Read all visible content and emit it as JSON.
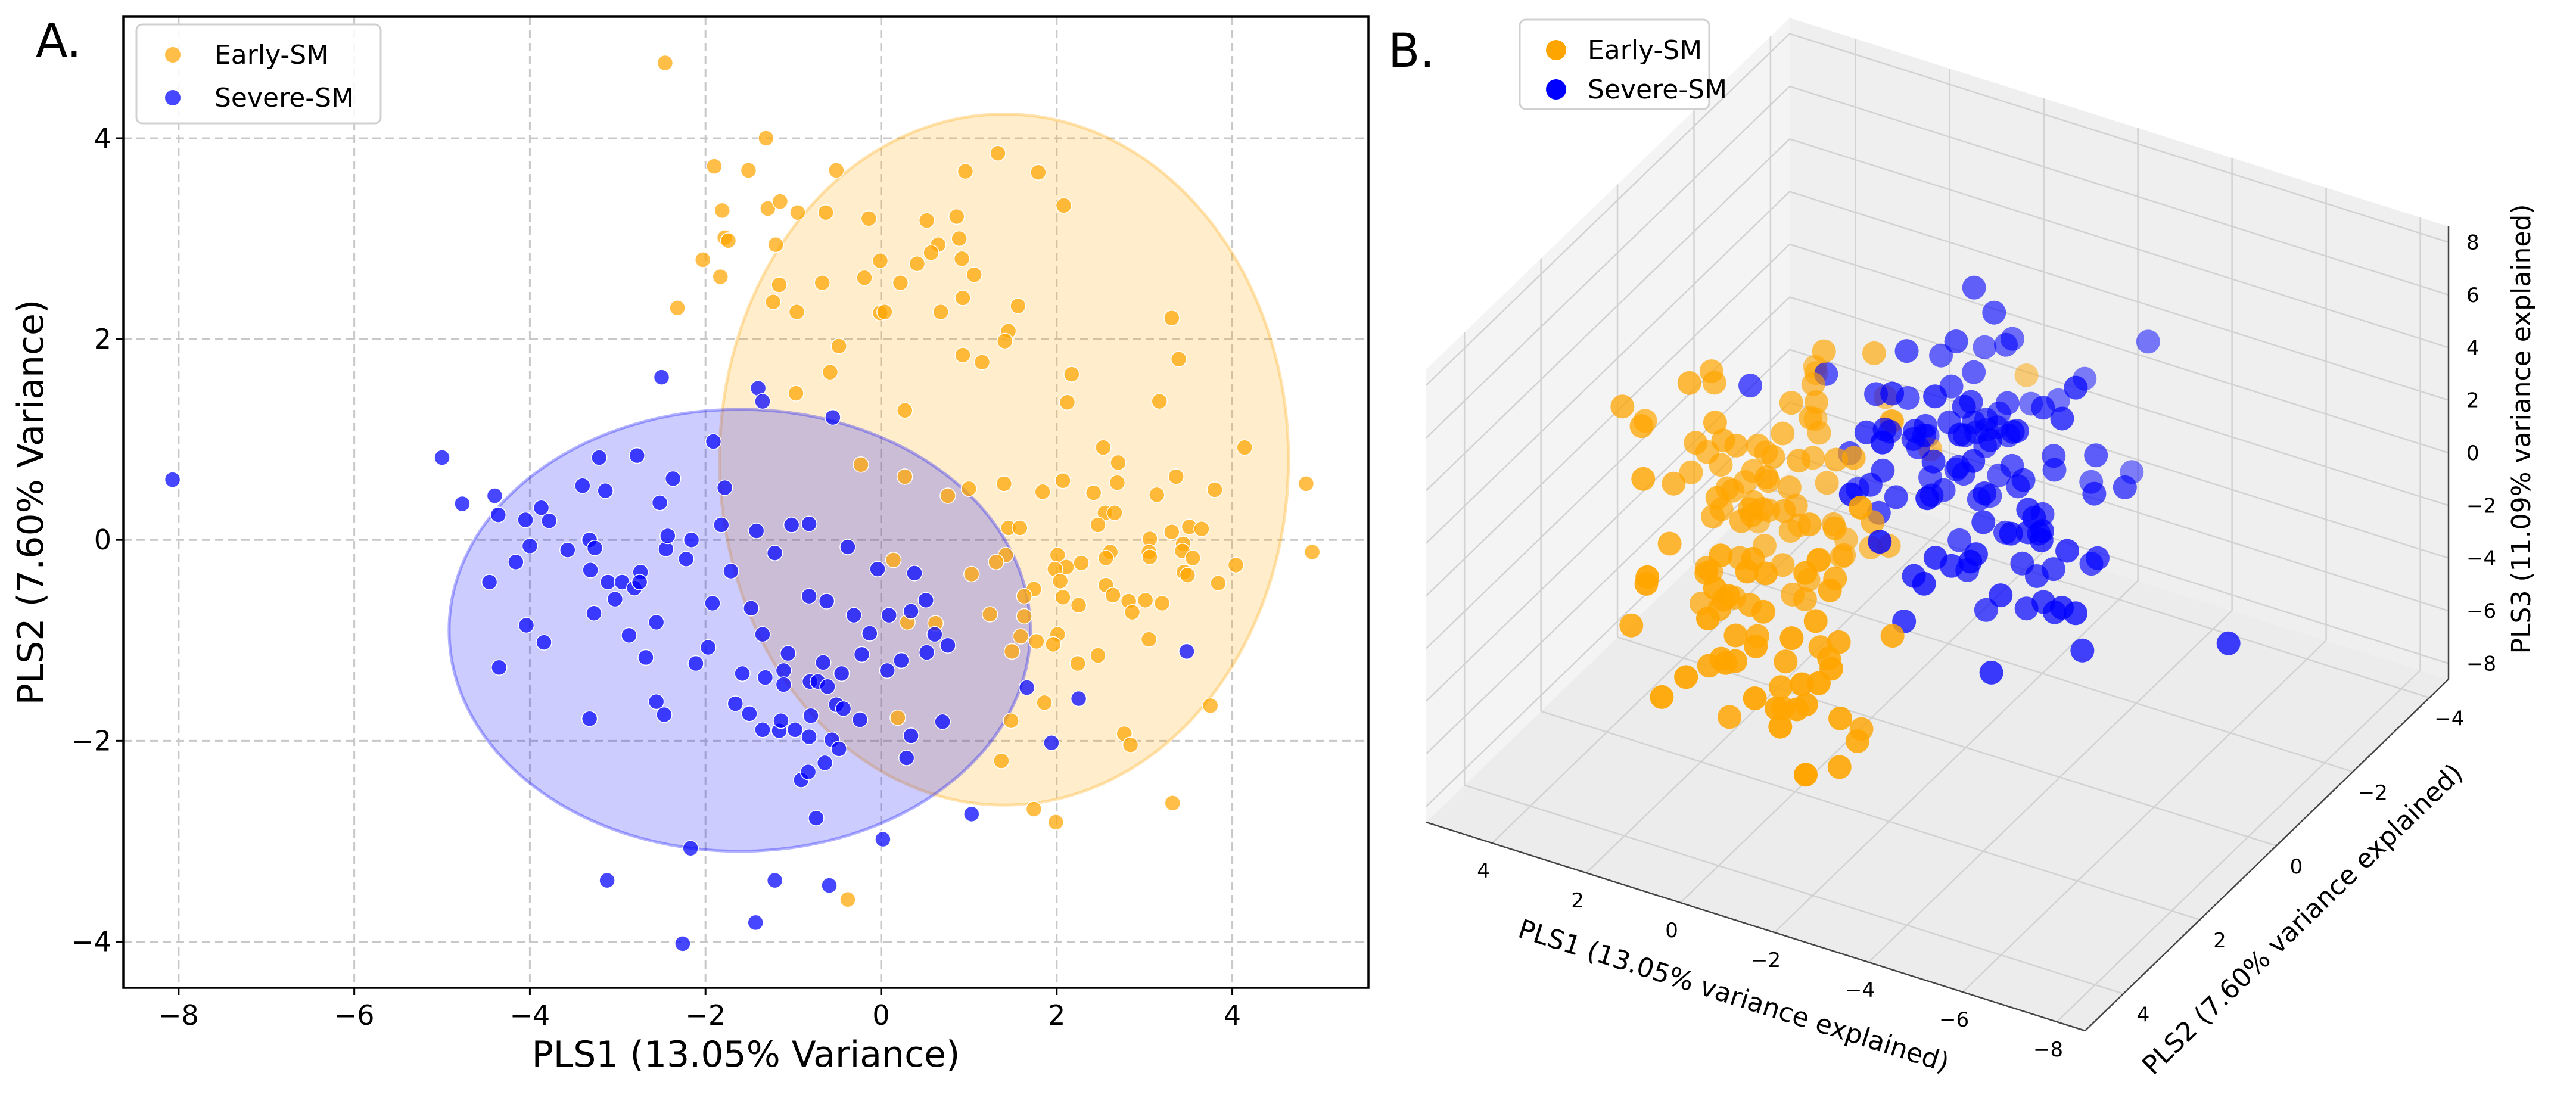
{
  "colors": {
    "early": "#FFA500",
    "severe": "#0000FF"
  },
  "chart_data": [
    {
      "panel_label": "A.",
      "type": "scatter",
      "xlabel": "PLS1 (13.05% Variance)",
      "ylabel": "PLS2 (7.60% Variance)",
      "xlim": [
        -8.63,
        5.55
      ],
      "ylim": [
        -4.46,
        5.21
      ],
      "xticks": [
        -8,
        -6,
        -4,
        -2,
        0,
        2,
        4
      ],
      "yticks": [
        -4,
        -2,
        0,
        2,
        4
      ],
      "grid": true,
      "legend_position": "top-left",
      "legend": [
        "Early-SM",
        "Severe-SM"
      ],
      "ellipses": [
        {
          "series": "Early-SM",
          "center": [
            1.4,
            0.8
          ],
          "radii": [
            3.24,
            3.44
          ]
        },
        {
          "series": "Severe-SM",
          "center": [
            -1.61,
            -0.9
          ],
          "radii": [
            3.31,
            2.2
          ]
        }
      ],
      "series": [
        {
          "name": "Early-SM",
          "points": [
            [
              -2.46,
              4.75
            ],
            [
              -1.31,
              4.0
            ],
            [
              -1.9,
              3.72
            ],
            [
              -1.51,
              3.68
            ],
            [
              -0.51,
              3.68
            ],
            [
              1.33,
              3.85
            ],
            [
              0.96,
              3.67
            ],
            [
              1.79,
              3.66
            ],
            [
              -1.81,
              3.28
            ],
            [
              -1.29,
              3.3
            ],
            [
              -1.15,
              3.37
            ],
            [
              -0.95,
              3.26
            ],
            [
              -0.63,
              3.26
            ],
            [
              -0.14,
              3.2
            ],
            [
              0.52,
              3.18
            ],
            [
              0.86,
              3.22
            ],
            [
              2.08,
              3.33
            ],
            [
              -1.78,
              3.01
            ],
            [
              -1.74,
              2.98
            ],
            [
              -1.2,
              2.94
            ],
            [
              0.65,
              2.94
            ],
            [
              0.89,
              3.0
            ],
            [
              0.57,
              2.86
            ],
            [
              0.92,
              2.8
            ],
            [
              0.41,
              2.75
            ],
            [
              -2.03,
              2.79
            ],
            [
              -0.01,
              2.78
            ],
            [
              -1.83,
              2.62
            ],
            [
              -1.16,
              2.54
            ],
            [
              -0.67,
              2.56
            ],
            [
              -0.19,
              2.61
            ],
            [
              0.22,
              2.56
            ],
            [
              1.06,
              2.64
            ],
            [
              -1.23,
              2.37
            ],
            [
              0.93,
              2.41
            ],
            [
              -2.32,
              2.31
            ],
            [
              -0.96,
              2.27
            ],
            [
              -0.01,
              2.26
            ],
            [
              0.04,
              2.27
            ],
            [
              0.68,
              2.27
            ],
            [
              1.56,
              2.33
            ],
            [
              3.31,
              2.21
            ],
            [
              1.45,
              2.08
            ],
            [
              1.41,
              1.98
            ],
            [
              -0.48,
              1.93
            ],
            [
              0.93,
              1.84
            ],
            [
              1.15,
              1.77
            ],
            [
              3.39,
              1.8
            ],
            [
              -0.58,
              1.67
            ],
            [
              2.17,
              1.65
            ],
            [
              -0.97,
              1.46
            ],
            [
              2.12,
              1.37
            ],
            [
              3.17,
              1.38
            ],
            [
              0.27,
              1.29
            ],
            [
              2.53,
              0.92
            ],
            [
              4.14,
              0.92
            ],
            [
              -0.23,
              0.75
            ],
            [
              0.27,
              0.63
            ],
            [
              2.7,
              0.77
            ],
            [
              3.36,
              0.63
            ],
            [
              2.07,
              0.59
            ],
            [
              1.4,
              0.56
            ],
            [
              2.69,
              0.57
            ],
            [
              4.84,
              0.56
            ],
            [
              1.0,
              0.51
            ],
            [
              1.84,
              0.48
            ],
            [
              2.42,
              0.47
            ],
            [
              3.14,
              0.45
            ],
            [
              3.8,
              0.5
            ],
            [
              0.76,
              0.44
            ],
            [
              2.55,
              0.27
            ],
            [
              2.66,
              0.27
            ],
            [
              2.47,
              0.15
            ],
            [
              1.45,
              0.12
            ],
            [
              1.58,
              0.12
            ],
            [
              3.31,
              0.08
            ],
            [
              3.51,
              0.13
            ],
            [
              3.65,
              0.11
            ],
            [
              3.06,
              0.01
            ],
            [
              3.44,
              -0.04
            ],
            [
              4.91,
              -0.12
            ],
            [
              2.01,
              -0.15
            ],
            [
              2.61,
              -0.12
            ],
            [
              3.05,
              -0.12
            ],
            [
              3.43,
              -0.11
            ],
            [
              1.42,
              -0.15
            ],
            [
              3.06,
              -0.17
            ],
            [
              3.55,
              -0.18
            ],
            [
              1.31,
              -0.22
            ],
            [
              2.28,
              -0.23
            ],
            [
              2.56,
              -0.18
            ],
            [
              0.14,
              -0.2
            ],
            [
              2.11,
              -0.27
            ],
            [
              1.98,
              -0.29
            ],
            [
              4.04,
              -0.25
            ],
            [
              1.03,
              -0.34
            ],
            [
              3.45,
              -0.32
            ],
            [
              3.49,
              -0.35
            ],
            [
              2.04,
              -0.41
            ],
            [
              2.56,
              -0.45
            ],
            [
              3.84,
              -0.43
            ],
            [
              1.74,
              -0.49
            ],
            [
              1.63,
              -0.56
            ],
            [
              2.07,
              -0.57
            ],
            [
              2.64,
              -0.55
            ],
            [
              2.82,
              -0.61
            ],
            [
              3.01,
              -0.6
            ],
            [
              3.2,
              -0.63
            ],
            [
              2.25,
              -0.65
            ],
            [
              2.86,
              -0.72
            ],
            [
              1.24,
              -0.74
            ],
            [
              1.63,
              -0.76
            ],
            [
              0.3,
              -0.82
            ],
            [
              0.62,
              -0.83
            ],
            [
              2.01,
              -0.94
            ],
            [
              1.59,
              -0.96
            ],
            [
              1.77,
              -1.01
            ],
            [
              1.96,
              -1.04
            ],
            [
              3.05,
              -0.99
            ],
            [
              1.49,
              -1.11
            ],
            [
              2.47,
              -1.15
            ],
            [
              2.24,
              -1.23
            ],
            [
              3.75,
              -1.65
            ],
            [
              1.86,
              -1.62
            ],
            [
              1.48,
              -1.8
            ],
            [
              0.19,
              -1.77
            ],
            [
              2.77,
              -1.93
            ],
            [
              2.84,
              -2.04
            ],
            [
              1.37,
              -2.2
            ],
            [
              1.74,
              -2.68
            ],
            [
              1.99,
              -2.81
            ],
            [
              3.32,
              -2.62
            ],
            [
              -0.38,
              -3.58
            ]
          ]
        },
        {
          "name": "Severe-SM",
          "points": [
            [
              -8.07,
              0.6
            ],
            [
              -5.0,
              0.82
            ],
            [
              -4.77,
              0.36
            ],
            [
              -4.4,
              0.44
            ],
            [
              -4.36,
              0.25
            ],
            [
              -4.46,
              -0.42
            ],
            [
              -4.35,
              -1.27
            ],
            [
              -4.16,
              -0.22
            ],
            [
              -4.05,
              0.2
            ],
            [
              -4.0,
              -0.06
            ],
            [
              -4.04,
              -0.85
            ],
            [
              -3.87,
              0.32
            ],
            [
              -3.78,
              0.19
            ],
            [
              -3.84,
              -1.02
            ],
            [
              -3.57,
              -0.1
            ],
            [
              -3.4,
              0.54
            ],
            [
              -3.32,
              0.0
            ],
            [
              -3.26,
              -0.08
            ],
            [
              -3.31,
              -0.3
            ],
            [
              -3.27,
              -0.73
            ],
            [
              -3.32,
              -1.78
            ],
            [
              -3.21,
              0.82
            ],
            [
              -3.14,
              0.49
            ],
            [
              -3.11,
              -0.42
            ],
            [
              -3.03,
              -0.59
            ],
            [
              -2.95,
              -0.42
            ],
            [
              -3.12,
              -3.39
            ],
            [
              -2.87,
              -0.95
            ],
            [
              -2.78,
              0.84
            ],
            [
              -2.81,
              -0.48
            ],
            [
              -2.74,
              -0.32
            ],
            [
              -2.75,
              -0.42
            ],
            [
              -2.68,
              -1.17
            ],
            [
              -2.56,
              -0.82
            ],
            [
              -2.56,
              -1.61
            ],
            [
              -2.52,
              0.37
            ],
            [
              -2.5,
              1.62
            ],
            [
              -2.47,
              -1.74
            ],
            [
              -2.45,
              -0.09
            ],
            [
              -2.43,
              0.04
            ],
            [
              -2.37,
              0.61
            ],
            [
              -2.22,
              -0.19
            ],
            [
              -2.16,
              0.0
            ],
            [
              -2.11,
              -1.23
            ],
            [
              -2.17,
              -3.07
            ],
            [
              -2.26,
              -4.02
            ],
            [
              -1.97,
              -1.07
            ],
            [
              -1.91,
              0.98
            ],
            [
              -1.92,
              -0.63
            ],
            [
              -1.82,
              0.15
            ],
            [
              -1.78,
              0.52
            ],
            [
              -1.71,
              -0.31
            ],
            [
              -1.66,
              -1.63
            ],
            [
              -1.58,
              -1.33
            ],
            [
              -1.48,
              -0.68
            ],
            [
              -1.5,
              -1.73
            ],
            [
              -1.42,
              0.09
            ],
            [
              -1.4,
              1.51
            ],
            [
              -1.35,
              1.38
            ],
            [
              -1.35,
              -0.94
            ],
            [
              -1.35,
              -1.89
            ],
            [
              -1.32,
              -1.37
            ],
            [
              -1.43,
              -3.81
            ],
            [
              -1.21,
              -0.13
            ],
            [
              -1.21,
              -3.39
            ],
            [
              -1.16,
              -1.9
            ],
            [
              -1.14,
              -1.8
            ],
            [
              -1.11,
              -1.3
            ],
            [
              -1.11,
              -1.44
            ],
            [
              -1.06,
              -1.13
            ],
            [
              -1.02,
              0.15
            ],
            [
              -0.98,
              -1.89
            ],
            [
              -0.91,
              -2.39
            ],
            [
              -0.83,
              -2.31
            ],
            [
              -0.82,
              0.16
            ],
            [
              -0.82,
              -0.56
            ],
            [
              -0.81,
              -1.41
            ],
            [
              -0.8,
              -1.75
            ],
            [
              -0.82,
              -1.96
            ],
            [
              -0.74,
              -2.77
            ],
            [
              -0.72,
              -1.41
            ],
            [
              -0.66,
              -1.22
            ],
            [
              -0.64,
              -2.22
            ],
            [
              -0.62,
              -0.61
            ],
            [
              -0.61,
              -1.46
            ],
            [
              -0.59,
              -3.44
            ],
            [
              -0.56,
              -1.99
            ],
            [
              -0.55,
              1.22
            ],
            [
              -0.51,
              -1.64
            ],
            [
              -0.48,
              -2.08
            ],
            [
              -0.45,
              -1.33
            ],
            [
              -0.43,
              -1.68
            ],
            [
              -0.38,
              -0.07
            ],
            [
              -0.31,
              -0.75
            ],
            [
              -0.24,
              -1.79
            ],
            [
              -0.22,
              -1.14
            ],
            [
              -0.13,
              -0.93
            ],
            [
              -0.04,
              -0.29
            ],
            [
              0.02,
              -2.98
            ],
            [
              0.07,
              -1.3
            ],
            [
              0.09,
              -0.75
            ],
            [
              0.23,
              -1.2
            ],
            [
              0.29,
              -2.17
            ],
            [
              0.34,
              -0.71
            ],
            [
              0.34,
              -1.95
            ],
            [
              0.38,
              -0.33
            ],
            [
              0.51,
              -0.6
            ],
            [
              0.52,
              -1.12
            ],
            [
              0.61,
              -0.94
            ],
            [
              0.7,
              -1.81
            ],
            [
              0.76,
              -1.05
            ],
            [
              1.03,
              -2.73
            ],
            [
              1.66,
              -1.47
            ],
            [
              1.94,
              -2.02
            ],
            [
              2.25,
              -1.58
            ],
            [
              3.48,
              -1.11
            ]
          ]
        }
      ]
    },
    {
      "panel_label": "B.",
      "type": "scatter3d",
      "xlabel": "PLS1 (13.05% variance explained)",
      "ylabel": "PLS2 (7.60% variance explained)",
      "zlabel": "PLS3 (11.09% variance explained)",
      "xticks": [
        4,
        2,
        0,
        -2,
        -4,
        -6,
        -8
      ],
      "yticks": [
        -4,
        -2,
        0,
        2,
        4
      ],
      "zticks": [
        8,
        6,
        4,
        2,
        0,
        -2,
        -4,
        -6,
        -8
      ],
      "xlim": [
        -8.6,
        5.4
      ],
      "ylim": [
        -4.5,
        5.0
      ],
      "zlim": [
        -8.6,
        8.6
      ],
      "legend_position": "top-left",
      "legend": [
        "Early-SM",
        "Severe-SM"
      ]
    }
  ]
}
